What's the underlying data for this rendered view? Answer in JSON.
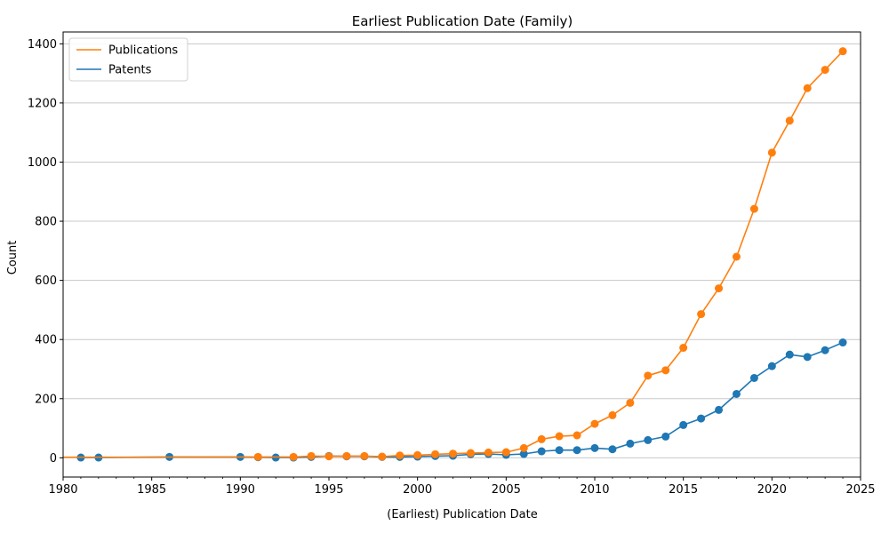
{
  "chart_data": {
    "type": "line",
    "title": "Earliest Publication Date (Family)",
    "xlabel": "(Earliest) Publication Date",
    "ylabel": "Count",
    "xlim": [
      1980,
      2025
    ],
    "ylim": [
      -65,
      1440
    ],
    "x_ticks": [
      1980,
      1985,
      1990,
      1995,
      2000,
      2005,
      2010,
      2015,
      2020,
      2025
    ],
    "y_ticks": [
      0,
      200,
      400,
      600,
      800,
      1000,
      1200,
      1400
    ],
    "grid": "horizontal",
    "legend_position": "top-left",
    "series": [
      {
        "name": "Publications",
        "color": "#ff7f0e",
        "line_from": 1980,
        "x": [
          1980,
          1991,
          1993,
          1994,
          1995,
          1996,
          1997,
          1998,
          1999,
          2000,
          2001,
          2002,
          2003,
          2004,
          2005,
          2006,
          2007,
          2008,
          2009,
          2010,
          2011,
          2012,
          2013,
          2014,
          2015,
          2016,
          2017,
          2018,
          2019,
          2020,
          2021,
          2022,
          2023,
          2024
        ],
        "values": [
          2,
          3,
          3,
          6,
          5,
          6,
          6,
          4,
          8,
          9,
          12,
          14,
          16,
          18,
          19,
          33,
          63,
          73,
          76,
          115,
          144,
          186,
          278,
          296,
          372,
          486,
          573,
          680,
          842,
          1032,
          1140,
          1250,
          1312,
          1375
        ]
      },
      {
        "name": "Patents",
        "color": "#1f77b4",
        "line_from": 1981,
        "x": [
          1981,
          1982,
          1986,
          1990,
          1991,
          1992,
          1993,
          1994,
          1995,
          1996,
          1997,
          1998,
          1999,
          2000,
          2001,
          2002,
          2003,
          2004,
          2005,
          2006,
          2007,
          2008,
          2009,
          2010,
          2011,
          2012,
          2013,
          2014,
          2015,
          2016,
          2017,
          2018,
          2019,
          2020,
          2021,
          2022,
          2023,
          2024
        ],
        "values": [
          1,
          1,
          3,
          3,
          2,
          1,
          1,
          3,
          6,
          5,
          5,
          3,
          3,
          4,
          6,
          7,
          12,
          13,
          10,
          13,
          22,
          26,
          26,
          33,
          29,
          48,
          60,
          72,
          111,
          133,
          162,
          216,
          270,
          310,
          349,
          341,
          364,
          390
        ]
      }
    ]
  }
}
